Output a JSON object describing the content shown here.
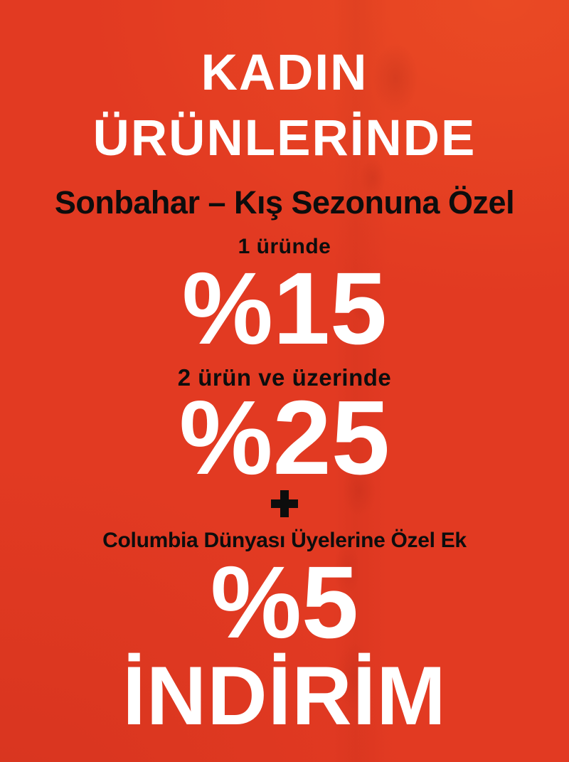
{
  "banner": {
    "header": {
      "line1": "KADIN",
      "line2": "ÜRÜNLERİNDE"
    },
    "subtitle": "Sonbahar – Kış Sezonuna Özel",
    "offers": [
      {
        "condition": "1 üründe",
        "discount": "%15"
      },
      {
        "condition": "2 ürün ve üzerinde",
        "discount": "%25"
      }
    ],
    "plus_symbol": "+",
    "membership": {
      "note": "Columbia Dünyası Üyelerine Özel Ek",
      "extra_discount": "%5"
    },
    "footer_word": "İNDİRİM",
    "colors": {
      "background": "#e23a22",
      "background_highlight": "#f06a28",
      "background_shade": "#b42a18",
      "headline_text": "#ffffff",
      "body_text": "#0d0d0d"
    }
  }
}
